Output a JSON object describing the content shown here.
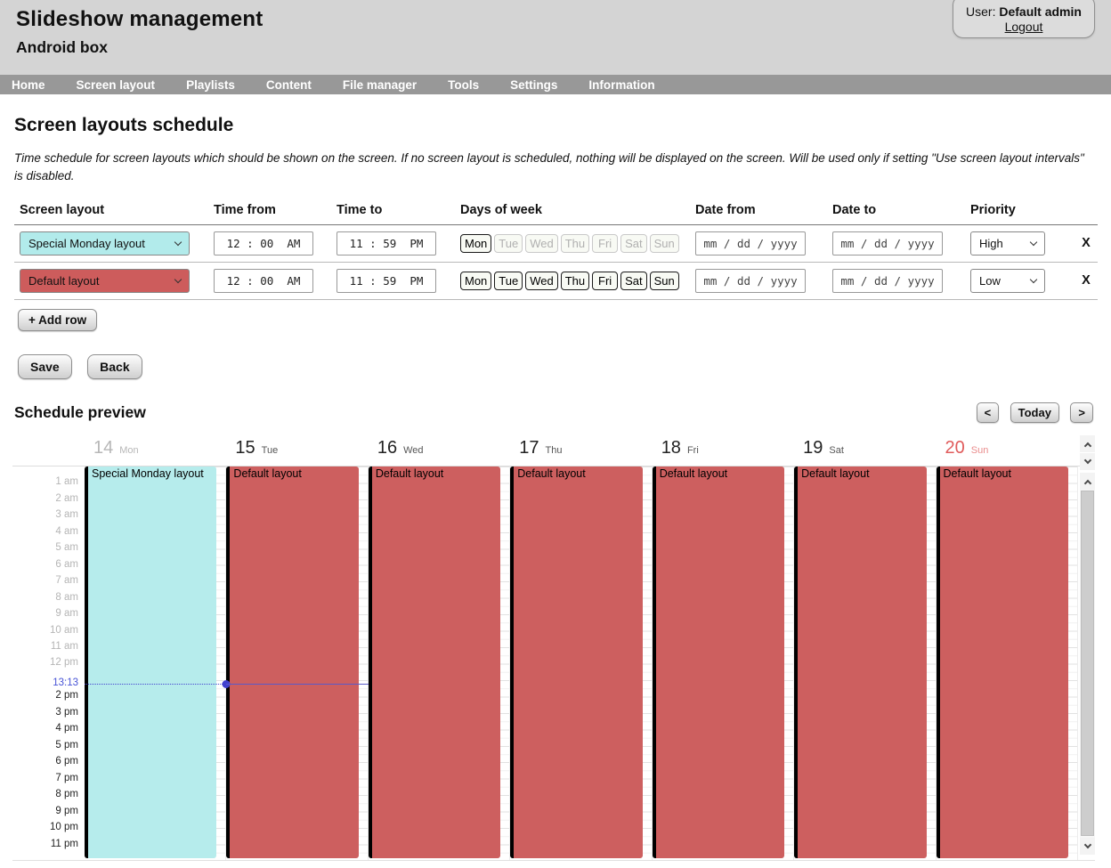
{
  "header": {
    "title": "Slideshow management",
    "subtitle": "Android box",
    "user_label": "User:",
    "user_name": "Default admin",
    "logout_label": "Logout"
  },
  "nav": {
    "items": [
      {
        "label": "Home"
      },
      {
        "label": "Screen layout"
      },
      {
        "label": "Playlists"
      },
      {
        "label": "Content"
      },
      {
        "label": "File manager"
      },
      {
        "label": "Tools"
      },
      {
        "label": "Settings"
      },
      {
        "label": "Information"
      }
    ]
  },
  "schedule": {
    "heading": "Screen layouts schedule",
    "description": "Time schedule for screen layouts which should be shown on the screen. If no screen layout is scheduled, nothing will be displayed on the screen. Will be used only if setting \"Use screen layout intervals\" is disabled.",
    "columns": [
      {
        "label": "Screen layout"
      },
      {
        "label": "Time from"
      },
      {
        "label": "Time to"
      },
      {
        "label": "Days of week"
      },
      {
        "label": "Date from"
      },
      {
        "label": "Date to"
      },
      {
        "label": "Priority"
      }
    ],
    "rows": [
      {
        "layout": "Special Monday layout",
        "layout_color": "#b2ebeb",
        "time_from": "12 : 00  AM",
        "time_to": "11 : 59  PM",
        "days": [
          {
            "label": "Mon",
            "state": "on"
          },
          {
            "label": "Tue",
            "state": "off"
          },
          {
            "label": "Wed",
            "state": "off"
          },
          {
            "label": "Thu",
            "state": "off"
          },
          {
            "label": "Fri",
            "state": "off"
          },
          {
            "label": "Sat",
            "state": "off"
          },
          {
            "label": "Sun",
            "state": "off"
          }
        ],
        "date_from": "mm / dd / yyyy",
        "date_to": "mm / dd / yyyy",
        "priority": "High",
        "remove_label": "X"
      },
      {
        "layout": "Default layout",
        "layout_color": "#cd5c5c",
        "time_from": "12 : 00  AM",
        "time_to": "11 : 59  PM",
        "days": [
          {
            "label": "Mon",
            "state": "on"
          },
          {
            "label": "Tue",
            "state": "on"
          },
          {
            "label": "Wed",
            "state": "on"
          },
          {
            "label": "Thu",
            "state": "on"
          },
          {
            "label": "Fri",
            "state": "on"
          },
          {
            "label": "Sat",
            "state": "on"
          },
          {
            "label": "Sun",
            "state": "on"
          }
        ],
        "date_from": "mm / dd / yyyy",
        "date_to": "mm / dd / yyyy",
        "priority": "Low",
        "remove_label": "X"
      }
    ],
    "add_row_label": "+ Add row",
    "save_label": "Save",
    "back_label": "Back"
  },
  "preview": {
    "heading": "Schedule preview",
    "prev_label": "<",
    "today_label": "Today",
    "next_label": ">",
    "today_col": 1,
    "now_hour": 13.2167,
    "days": [
      {
        "number": "14",
        "name": "Mon",
        "state": "past",
        "event_title": "Special Monday layout",
        "event_color": "#b6ecec"
      },
      {
        "number": "15",
        "name": "Tue",
        "state": "today",
        "event_title": "Default layout",
        "event_color": "#cd5f5f"
      },
      {
        "number": "16",
        "name": "Wed",
        "state": "normal",
        "event_title": "Default layout",
        "event_color": "#cd5f5f"
      },
      {
        "number": "17",
        "name": "Thu",
        "state": "normal",
        "event_title": "Default layout",
        "event_color": "#cd5f5f"
      },
      {
        "number": "18",
        "name": "Fri",
        "state": "normal",
        "event_title": "Default layout",
        "event_color": "#cd5f5f"
      },
      {
        "number": "19",
        "name": "Sat",
        "state": "normal",
        "event_title": "Default layout",
        "event_color": "#cd5f5f"
      },
      {
        "number": "20",
        "name": "Sun",
        "state": "sunday",
        "event_title": "Default layout",
        "event_color": "#cd5f5f"
      }
    ],
    "hours": [
      {
        "label": "1 am",
        "hour": 1,
        "state": "past"
      },
      {
        "label": "2 am",
        "hour": 2,
        "state": "past"
      },
      {
        "label": "3 am",
        "hour": 3,
        "state": "past"
      },
      {
        "label": "4 am",
        "hour": 4,
        "state": "past"
      },
      {
        "label": "5 am",
        "hour": 5,
        "state": "past"
      },
      {
        "label": "6 am",
        "hour": 6,
        "state": "past"
      },
      {
        "label": "7 am",
        "hour": 7,
        "state": "past"
      },
      {
        "label": "8 am",
        "hour": 8,
        "state": "past"
      },
      {
        "label": "9 am",
        "hour": 9,
        "state": "past"
      },
      {
        "label": "10 am",
        "hour": 10,
        "state": "past"
      },
      {
        "label": "11 am",
        "hour": 11,
        "state": "past"
      },
      {
        "label": "12 pm",
        "hour": 12,
        "state": "past"
      },
      {
        "label": "13:13",
        "hour": 13.2167,
        "state": "now"
      },
      {
        "label": "2 pm",
        "hour": 14,
        "state": "future"
      },
      {
        "label": "3 pm",
        "hour": 15,
        "state": "future"
      },
      {
        "label": "4 pm",
        "hour": 16,
        "state": "future"
      },
      {
        "label": "5 pm",
        "hour": 17,
        "state": "future"
      },
      {
        "label": "6 pm",
        "hour": 18,
        "state": "future"
      },
      {
        "label": "7 pm",
        "hour": 19,
        "state": "future"
      },
      {
        "label": "8 pm",
        "hour": 20,
        "state": "future"
      },
      {
        "label": "9 pm",
        "hour": 21,
        "state": "future"
      },
      {
        "label": "10 pm",
        "hour": 22,
        "state": "future"
      },
      {
        "label": "11 pm",
        "hour": 23,
        "state": "future"
      }
    ]
  },
  "colors": {
    "special_layout": "#b2ebeb",
    "default_layout": "#cd5c5c",
    "now_indicator": "#4646d0",
    "nav_background": "#989898",
    "header_background": "#d4d4d4"
  }
}
